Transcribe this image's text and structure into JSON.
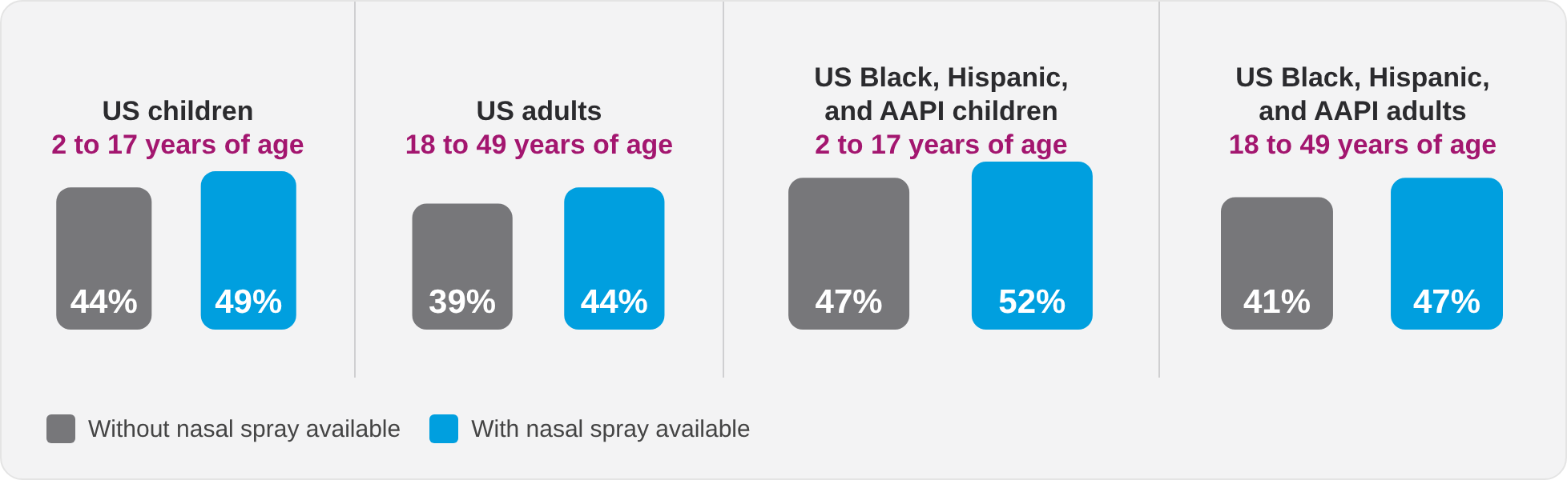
{
  "chart_data": [
    {
      "type": "bar",
      "title": "US children",
      "subtitle": "2 to 17 years of age",
      "categories": [
        null
      ],
      "legend": "bottom",
      "series": [
        {
          "name": "Without nasal spray available",
          "color": "#77777a",
          "values": [
            44
          ],
          "value_labels": [
            "44%"
          ]
        },
        {
          "name": "With nasal spray available",
          "color": "#009fdf",
          "values": [
            49
          ],
          "value_labels": [
            "49%"
          ]
        }
      ]
    },
    {
      "type": "bar",
      "title": "US adults",
      "subtitle": "18 to 49 years of age",
      "categories": [
        null
      ],
      "series": [
        {
          "color": "#77777a",
          "values": [
            39
          ],
          "value_labels": [
            "39%"
          ]
        },
        {
          "color": "#009fdf",
          "values": [
            44
          ],
          "value_labels": [
            "44%"
          ]
        }
      ]
    },
    {
      "type": "bar",
      "title": "US Black, Hispanic, and AAPI children",
      "subtitle": "2 to 17 years of age",
      "categories": [
        null
      ],
      "series": [
        {
          "color": "#77777a",
          "values": [
            47
          ],
          "value_labels": [
            "47%"
          ]
        },
        {
          "color": "#009fdf",
          "values": [
            52
          ],
          "value_labels": [
            "52%"
          ]
        }
      ]
    },
    {
      "type": "bar",
      "title": "US Black, Hispanic, and AAPI adults",
      "subtitle": "18 to 49 years of age",
      "categories": [
        null
      ],
      "series": [
        {
          "color": "#77777a",
          "values": [
            41
          ],
          "value_labels": [
            "41%"
          ]
        },
        {
          "color": "#009fdf",
          "values": [
            47
          ],
          "value_labels": [
            "47%"
          ]
        }
      ]
    }
  ]
}
